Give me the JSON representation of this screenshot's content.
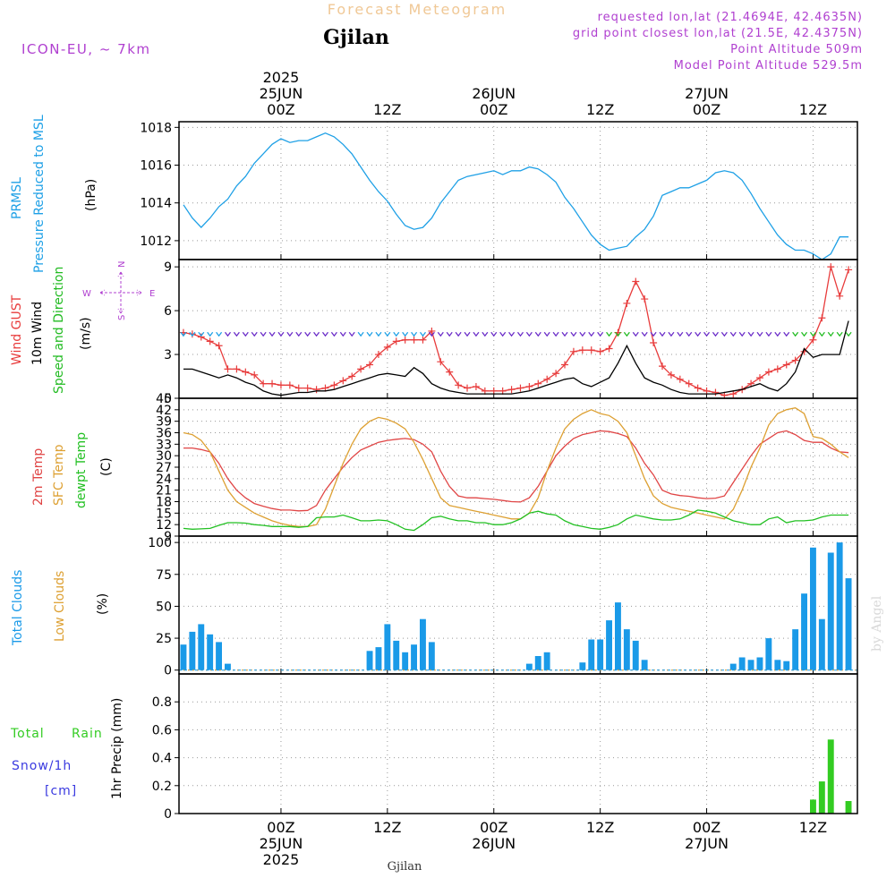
{
  "header": {
    "title": "Forecast Meteogram",
    "location": "Gjilan",
    "model": "ICON-EU, ~ 7km",
    "requested": "requested lon,lat (21.4694E, 42.4635N)",
    "grid_point": "grid point closest lon,lat (21.5E, 42.4375N)",
    "point_altitude": "Point Altitude 509m",
    "model_altitude": "Model Point Altitude 529.5m",
    "footer_location": "Gjilan",
    "watermark": "by Angel"
  },
  "colors": {
    "pressure": "#1ea0e6",
    "gust": "#e83c3c",
    "wind": "#000000",
    "wind_arrow": "#22bb22",
    "compass": "#b040d0",
    "temp2m": "#e04545",
    "sfc_temp": "#dda032",
    "dewpt": "#22c022",
    "total_clouds": "#1a9ae8",
    "low_clouds": "#dda032",
    "rain": "#33cc22",
    "snow": "#3a3ae0",
    "title": "#f0c896",
    "info": "#b040d0"
  },
  "time_axis": {
    "top_years": [
      "2025",
      "",
      "",
      "",
      "",
      ""
    ],
    "top_dates": [
      "25JUN",
      "",
      "26JUN",
      "",
      "27JUN",
      ""
    ],
    "top_hours": [
      "00Z",
      "12Z",
      "00Z",
      "12Z",
      "00Z",
      "12Z"
    ],
    "bottom_hours": [
      "00Z",
      "12Z",
      "00Z",
      "12Z",
      "00Z",
      "12Z"
    ],
    "bottom_dates": [
      "25JUN",
      "",
      "26JUN",
      "",
      "27JUN",
      ""
    ],
    "bottom_years": [
      "2025",
      "",
      "",
      "",
      "",
      ""
    ],
    "tick_hours": [
      0,
      12,
      24,
      36,
      48,
      60
    ],
    "start_hour": -11,
    "end_hour": 65
  },
  "chart_data": [
    {
      "type": "line",
      "panel": "pressure",
      "ylabel": [
        "PRMSL",
        "Pressure Reduced to MSL",
        "(hPa)"
      ],
      "ylim": [
        1011,
        1018.3
      ],
      "yticks": [
        1012,
        1014,
        1016,
        1018
      ],
      "x": [
        -11,
        -10,
        -9,
        -8,
        -7,
        -6,
        -5,
        -4,
        -3,
        -2,
        -1,
        0,
        1,
        2,
        3,
        4,
        5,
        6,
        7,
        8,
        9,
        10,
        11,
        12,
        13,
        14,
        15,
        16,
        17,
        18,
        19,
        20,
        21,
        22,
        23,
        24,
        25,
        26,
        27,
        28,
        29,
        30,
        31,
        32,
        33,
        34,
        35,
        36,
        37,
        38,
        39,
        40,
        41,
        42,
        43,
        44,
        45,
        46,
        47,
        48,
        49,
        50,
        51,
        52,
        53,
        54,
        55,
        56,
        57,
        58,
        59,
        60,
        61,
        62,
        63,
        64
      ],
      "series": [
        {
          "name": "PRMSL",
          "values": [
            1013.9,
            1013.2,
            1012.7,
            1013.2,
            1013.8,
            1014.2,
            1014.9,
            1015.4,
            1016.1,
            1016.6,
            1017.1,
            1017.4,
            1017.2,
            1017.3,
            1017.3,
            1017.5,
            1017.7,
            1017.5,
            1017.1,
            1016.6,
            1015.9,
            1015.2,
            1014.6,
            1014.1,
            1013.4,
            1012.8,
            1012.6,
            1012.7,
            1013.2,
            1014.0,
            1014.6,
            1015.2,
            1015.4,
            1015.5,
            1015.6,
            1015.7,
            1015.5,
            1015.7,
            1015.7,
            1015.9,
            1015.8,
            1015.5,
            1015.1,
            1014.3,
            1013.7,
            1013.0,
            1012.3,
            1011.8,
            1011.5,
            1011.6,
            1011.7,
            1012.2,
            1012.6,
            1013.3,
            1014.4,
            1014.6,
            1014.8,
            1014.8,
            1015.0,
            1015.2,
            1015.6,
            1015.7,
            1015.6,
            1015.2,
            1014.5,
            1013.7,
            1013.0,
            1012.3,
            1011.8,
            1011.5,
            1011.5,
            1011.3,
            1011.0,
            1011.3,
            1012.2,
            1012.2
          ]
        }
      ]
    },
    {
      "type": "line",
      "panel": "wind",
      "ylabel": [
        "Wind GUST",
        "10m Wind",
        "Speed and Direction",
        "(m/s)"
      ],
      "compass": {
        "n": "N",
        "s": "S",
        "w": "W",
        "e": "E"
      },
      "ylim": [
        0,
        9.5
      ],
      "yticks": [
        0,
        3,
        6,
        9
      ],
      "x": [
        -11,
        -10,
        -9,
        -8,
        -7,
        -6,
        -5,
        -4,
        -3,
        -2,
        -1,
        0,
        1,
        2,
        3,
        4,
        5,
        6,
        7,
        8,
        9,
        10,
        11,
        12,
        13,
        14,
        15,
        16,
        17,
        18,
        19,
        20,
        21,
        22,
        23,
        24,
        25,
        26,
        27,
        28,
        29,
        30,
        31,
        32,
        33,
        34,
        35,
        36,
        37,
        38,
        39,
        40,
        41,
        42,
        43,
        44,
        45,
        46,
        47,
        48,
        49,
        50,
        51,
        52,
        53,
        54,
        55,
        56,
        57,
        58,
        59,
        60,
        61,
        62,
        63,
        64
      ],
      "series": [
        {
          "name": "Wind GUST",
          "values": [
            4.5,
            4.4,
            4.2,
            3.9,
            3.6,
            2.0,
            2.0,
            1.8,
            1.6,
            1.0,
            1.0,
            0.9,
            0.9,
            0.7,
            0.7,
            0.6,
            0.7,
            0.9,
            1.2,
            1.5,
            2.0,
            2.3,
            3.0,
            3.5,
            3.9,
            4.0,
            4.0,
            4.0,
            4.6,
            2.5,
            1.8,
            0.9,
            0.7,
            0.8,
            0.5,
            0.5,
            0.5,
            0.6,
            0.7,
            0.8,
            1.0,
            1.3,
            1.7,
            2.3,
            3.2,
            3.3,
            3.3,
            3.2,
            3.4,
            4.5,
            6.5,
            8.0,
            6.8,
            3.8,
            2.2,
            1.6,
            1.3,
            1.0,
            0.7,
            0.5,
            0.4,
            0.2,
            0.3,
            0.6,
            1.0,
            1.4,
            1.8,
            2.0,
            2.3,
            2.6,
            3.2,
            4.0,
            5.5,
            9.0,
            7.0,
            8.8
          ]
        },
        {
          "name": "10m Wind",
          "values": [
            2.0,
            2.0,
            1.8,
            1.6,
            1.4,
            1.6,
            1.4,
            1.1,
            0.9,
            0.5,
            0.3,
            0.2,
            0.3,
            0.4,
            0.4,
            0.5,
            0.5,
            0.6,
            0.8,
            1.0,
            1.2,
            1.4,
            1.6,
            1.7,
            1.6,
            1.5,
            2.1,
            1.7,
            1.0,
            0.7,
            0.5,
            0.4,
            0.3,
            0.3,
            0.3,
            0.3,
            0.3,
            0.3,
            0.4,
            0.5,
            0.7,
            0.9,
            1.1,
            1.3,
            1.4,
            1.0,
            0.8,
            1.1,
            1.4,
            2.4,
            3.6,
            2.4,
            1.4,
            1.1,
            0.9,
            0.6,
            0.4,
            0.3,
            0.3,
            0.3,
            0.3,
            0.4,
            0.5,
            0.6,
            0.8,
            1.0,
            0.7,
            0.5,
            1.0,
            1.8,
            3.4,
            2.8,
            3.0,
            3.0,
            3.0,
            5.3
          ]
        }
      ]
    },
    {
      "type": "line",
      "panel": "temperature",
      "ylabel": [
        "2m Temp",
        "SFC Temp",
        "dewpt Temp",
        "(C)"
      ],
      "ylim": [
        9,
        45
      ],
      "yticks": [
        9,
        12,
        15,
        18,
        21,
        24,
        27,
        30,
        33,
        36,
        39,
        42,
        45
      ],
      "x": [
        -11,
        -10,
        -9,
        -8,
        -7,
        -6,
        -5,
        -4,
        -3,
        -2,
        -1,
        0,
        1,
        2,
        3,
        4,
        5,
        6,
        7,
        8,
        9,
        10,
        11,
        12,
        13,
        14,
        15,
        16,
        17,
        18,
        19,
        20,
        21,
        22,
        23,
        24,
        25,
        26,
        27,
        28,
        29,
        30,
        31,
        32,
        33,
        34,
        35,
        36,
        37,
        38,
        39,
        40,
        41,
        42,
        43,
        44,
        45,
        46,
        47,
        48,
        49,
        50,
        51,
        52,
        53,
        54,
        55,
        56,
        57,
        58,
        59,
        60,
        61,
        62,
        63,
        64
      ],
      "series": [
        {
          "name": "2m Temp",
          "values": [
            32.0,
            32.0,
            31.6,
            31.0,
            28.0,
            24.0,
            21.0,
            19.0,
            17.5,
            16.8,
            16.2,
            15.8,
            15.8,
            15.6,
            15.7,
            17.0,
            21.0,
            24.0,
            27.0,
            29.5,
            31.5,
            32.5,
            33.5,
            34.0,
            34.3,
            34.5,
            34.2,
            33.0,
            31.0,
            26.0,
            22.0,
            19.5,
            19.0,
            19.0,
            18.8,
            18.6,
            18.3,
            18.0,
            17.9,
            19.0,
            22.0,
            26.0,
            30.0,
            32.5,
            34.5,
            35.5,
            36.0,
            36.5,
            36.3,
            35.8,
            35.0,
            32.0,
            28.0,
            25.0,
            21.0,
            20.0,
            19.6,
            19.4,
            19.0,
            18.8,
            18.9,
            19.5,
            23.0,
            26.5,
            30.0,
            33.0,
            34.5,
            36.0,
            36.5,
            35.5,
            34.0,
            33.5,
            33.5,
            32.0,
            31.0,
            30.8
          ]
        },
        {
          "name": "SFC Temp",
          "values": [
            36.0,
            35.5,
            34.0,
            31.0,
            26.0,
            21.0,
            18.0,
            16.5,
            15.0,
            14.0,
            13.0,
            12.3,
            11.8,
            11.5,
            11.5,
            12.0,
            16.0,
            22.0,
            28.0,
            33.0,
            37.0,
            39.0,
            40.0,
            39.5,
            38.5,
            37.0,
            33.5,
            29.0,
            24.0,
            19.0,
            17.0,
            16.5,
            16.0,
            15.5,
            15.0,
            14.5,
            14.0,
            13.5,
            13.5,
            15.0,
            19.0,
            26.0,
            32.0,
            37.0,
            39.5,
            41.0,
            42.0,
            41.0,
            40.5,
            39.0,
            36.0,
            30.0,
            24.0,
            19.5,
            17.5,
            16.5,
            16.0,
            15.5,
            15.0,
            14.5,
            14.0,
            13.5,
            16.0,
            21.0,
            27.0,
            32.0,
            38.0,
            41.0,
            42.0,
            42.5,
            41.0,
            35.0,
            34.5,
            33.0,
            31.0,
            29.5
          ]
        },
        {
          "name": "dewpt Temp",
          "values": [
            11.0,
            10.8,
            10.9,
            11.0,
            11.8,
            12.5,
            12.5,
            12.4,
            12.0,
            11.8,
            11.5,
            11.5,
            11.5,
            11.3,
            11.5,
            13.8,
            14.0,
            14.0,
            14.5,
            13.8,
            13.0,
            13.0,
            13.2,
            13.0,
            12.0,
            10.8,
            10.5,
            12.0,
            13.8,
            14.2,
            13.5,
            13.0,
            13.0,
            12.5,
            12.5,
            12.0,
            12.0,
            12.5,
            13.5,
            15.0,
            15.5,
            14.8,
            14.5,
            13.0,
            12.0,
            11.5,
            11.0,
            10.8,
            11.3,
            12.0,
            13.5,
            14.5,
            14.0,
            13.5,
            13.2,
            13.2,
            13.5,
            14.5,
            15.8,
            15.5,
            15.0,
            14.0,
            13.0,
            12.5,
            12.0,
            12.0,
            13.5,
            14.0,
            12.5,
            13.0,
            13.0,
            13.2,
            14.0,
            14.5,
            14.5,
            14.5
          ]
        }
      ]
    },
    {
      "type": "bar",
      "panel": "clouds",
      "ylabel": [
        "Total Clouds",
        "Low Clouds",
        "(%)"
      ],
      "ylim": [
        -3,
        105
      ],
      "yticks": [
        0,
        25,
        50,
        75,
        100
      ],
      "x": [
        -11,
        -10,
        -9,
        -8,
        -7,
        -6,
        -5,
        -4,
        -3,
        -2,
        -1,
        0,
        1,
        2,
        3,
        4,
        5,
        6,
        7,
        8,
        9,
        10,
        11,
        12,
        13,
        14,
        15,
        16,
        17,
        18,
        19,
        20,
        21,
        22,
        23,
        24,
        25,
        26,
        27,
        28,
        29,
        30,
        31,
        32,
        33,
        34,
        35,
        36,
        37,
        38,
        39,
        40,
        41,
        42,
        43,
        44,
        45,
        46,
        47,
        48,
        49,
        50,
        51,
        52,
        53,
        54,
        55,
        56,
        57,
        58,
        59,
        60,
        61,
        62,
        63,
        64
      ],
      "series": [
        {
          "name": "Total Clouds",
          "values": [
            20,
            30,
            36,
            28,
            22,
            5,
            0,
            0,
            0,
            0,
            0,
            0,
            0,
            0,
            0,
            0,
            0,
            0,
            0,
            0,
            0,
            15,
            18,
            36,
            23,
            14,
            20,
            40,
            22,
            0,
            0,
            0,
            0,
            0,
            0,
            0,
            0,
            0,
            0,
            5,
            11,
            14,
            0,
            0,
            0,
            6,
            24,
            24,
            39,
            53,
            32,
            23,
            8,
            0,
            0,
            0,
            0,
            0,
            0,
            0,
            0,
            0,
            5,
            10,
            8,
            10,
            25,
            8,
            7,
            32,
            60,
            96,
            40,
            92,
            100,
            72
          ]
        },
        {
          "name": "Low Clouds",
          "values": [
            0,
            0,
            0,
            0,
            0,
            0,
            0,
            0,
            0,
            0,
            0,
            0,
            0,
            0,
            0,
            0,
            0,
            0,
            0,
            0,
            0,
            0,
            0,
            0,
            0,
            0,
            0,
            0,
            0,
            0,
            0,
            0,
            0,
            0,
            0,
            0,
            0,
            0,
            0,
            0,
            0,
            0,
            0,
            0,
            0,
            0,
            0,
            0,
            0,
            0,
            0,
            0,
            0,
            0,
            0,
            0,
            0,
            0,
            0,
            0,
            0,
            0,
            0,
            0,
            0,
            0,
            0,
            0,
            0,
            0,
            0,
            0,
            0,
            0,
            0,
            0
          ]
        }
      ]
    },
    {
      "type": "bar",
      "panel": "precip",
      "ylabel": [
        "Total",
        "Rain",
        "Snow/1h",
        "[cm]",
        "1hr Precip (mm)"
      ],
      "ylim": [
        0,
        1.0
      ],
      "yticks": [
        0,
        0.2,
        0.4,
        0.6,
        0.8
      ],
      "ytick_labels": [
        "0",
        "0.2",
        "0.4",
        "0.6",
        "0.8"
      ],
      "x": [
        60,
        61,
        62,
        64
      ],
      "series": [
        {
          "name": "Total Rain",
          "values": [
            0.1,
            0.23,
            0.53,
            0.09
          ]
        }
      ]
    }
  ]
}
